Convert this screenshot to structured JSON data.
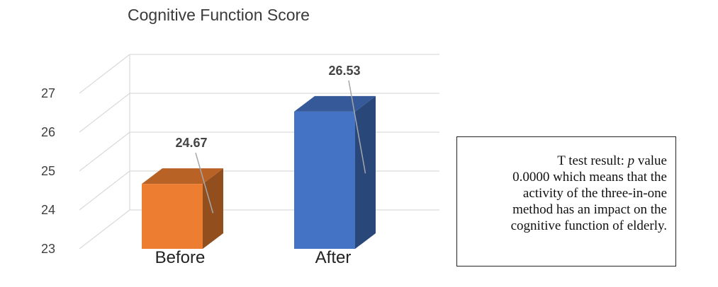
{
  "chart_data": {
    "type": "bar",
    "title": "Cognitive Function Score",
    "categories": [
      "Before",
      "After"
    ],
    "values": [
      24.67,
      26.53
    ],
    "data_labels": [
      "24.67",
      "26.53"
    ],
    "ylim": [
      23,
      27
    ],
    "yticks": [
      23,
      24,
      25,
      26,
      27
    ],
    "grid": true,
    "style": "3d-column",
    "colors": [
      "#ED7D31",
      "#4472C4"
    ]
  },
  "note": {
    "line1_prefix": "T test result: ",
    "line1_italic": "p",
    "line1_suffix": " value",
    "line2": "0.0000 which means that the",
    "line3": "activity of the three-in-one",
    "line4": "method has an impact on the",
    "line5": "cognitive function of elderly."
  }
}
